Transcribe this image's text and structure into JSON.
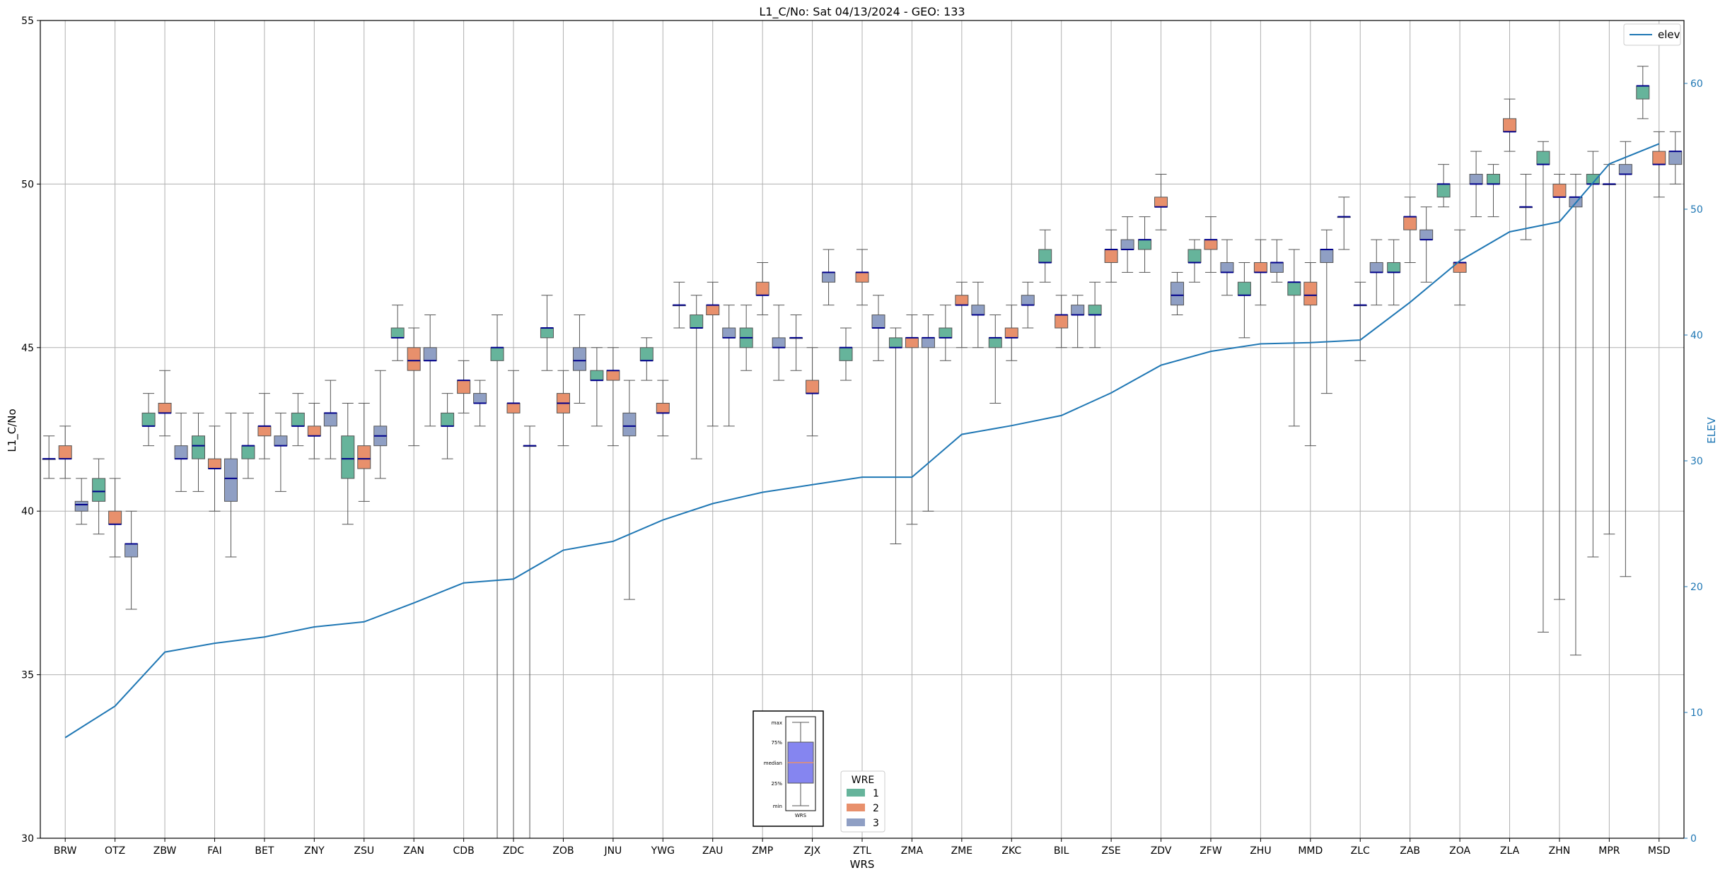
{
  "chart_data": {
    "type": "box",
    "title": "L1_C/No: Sat 04/13/2024 - GEO: 133",
    "xlabel": "WRS",
    "ylabel": "L1_C/No",
    "y2label": "ELEV",
    "ylim": [
      30,
      55
    ],
    "y2lim": [
      0,
      65
    ],
    "yticks": [
      30,
      35,
      40,
      45,
      50,
      55
    ],
    "y2ticks": [
      0,
      10,
      20,
      30,
      40,
      50,
      60
    ],
    "grid": true,
    "categories": [
      "BRW",
      "OTZ",
      "ZBW",
      "FAI",
      "BET",
      "ZNY",
      "ZSU",
      "ZAN",
      "CDB",
      "ZDC",
      "ZOB",
      "JNU",
      "YWG",
      "ZAU",
      "ZMP",
      "ZJX",
      "ZTL",
      "ZMA",
      "ZME",
      "ZKC",
      "BIL",
      "ZSE",
      "ZDV",
      "ZFW",
      "ZHU",
      "MMD",
      "ZLC",
      "ZAB",
      "ZOA",
      "ZLA",
      "ZHN",
      "MPR",
      "MSD"
    ],
    "wre_colors": {
      "1": "#66b49b",
      "2": "#e8906c",
      "3": "#8f9fc4"
    },
    "median_color": "#00008b",
    "elev_color": "#1f77b4",
    "legend_elev": {
      "label": "elev",
      "placement": "top-right"
    },
    "legend_wre": {
      "title": "WRE",
      "labels": [
        "1",
        "2",
        "3"
      ],
      "placement": "lower-center"
    },
    "key_box": {
      "labels": [
        "max",
        "75%",
        "median",
        "25%",
        "min"
      ],
      "xlabel": "WRS"
    },
    "elev": [
      8,
      10.5,
      14.8,
      15.5,
      16,
      16.8,
      17.2,
      18.7,
      20.3,
      20.6,
      22.9,
      23.6,
      25.3,
      26.6,
      27.5,
      28.1,
      28.7,
      28.7,
      32.1,
      32.8,
      33.6,
      35.4,
      37.6,
      38.7,
      39.3,
      39.4,
      39.6,
      42.6,
      45.9,
      48.2,
      49,
      53.6,
      55.2
    ],
    "boxes": [
      {
        "wrs": "BRW",
        "wre": "1",
        "min": 41,
        "q1": 41.6,
        "median": 41.6,
        "q3": 41.6,
        "max": 42.3
      },
      {
        "wrs": "BRW",
        "wre": "2",
        "min": 41,
        "q1": 41.6,
        "median": 41.6,
        "q3": 42,
        "max": 42.6
      },
      {
        "wrs": "BRW",
        "wre": "3",
        "min": 39.6,
        "q1": 40,
        "median": 40.2,
        "q3": 40.3,
        "max": 41
      },
      {
        "wrs": "OTZ",
        "wre": "1",
        "min": 39.3,
        "q1": 40.3,
        "median": 40.6,
        "q3": 41,
        "max": 41.6
      },
      {
        "wrs": "OTZ",
        "wre": "2",
        "min": 38.6,
        "q1": 39.6,
        "median": 39.6,
        "q3": 40,
        "max": 41
      },
      {
        "wrs": "OTZ",
        "wre": "3",
        "min": 37,
        "q1": 38.6,
        "median": 39,
        "q3": 39,
        "max": 40
      },
      {
        "wrs": "ZBW",
        "wre": "1",
        "min": 42,
        "q1": 42.6,
        "median": 42.6,
        "q3": 43,
        "max": 43.6
      },
      {
        "wrs": "ZBW",
        "wre": "2",
        "min": 42.3,
        "q1": 43,
        "median": 43,
        "q3": 43.3,
        "max": 44.3
      },
      {
        "wrs": "ZBW",
        "wre": "3",
        "min": 40.6,
        "q1": 41.6,
        "median": 41.6,
        "q3": 42,
        "max": 43
      },
      {
        "wrs": "FAI",
        "wre": "1",
        "min": 40.6,
        "q1": 41.6,
        "median": 42,
        "q3": 42.3,
        "max": 43
      },
      {
        "wrs": "FAI",
        "wre": "2",
        "min": 40,
        "q1": 41.3,
        "median": 41.3,
        "q3": 41.6,
        "max": 42.6
      },
      {
        "wrs": "FAI",
        "wre": "3",
        "min": 38.6,
        "q1": 40.3,
        "median": 41,
        "q3": 41.6,
        "max": 43
      },
      {
        "wrs": "BET",
        "wre": "1",
        "min": 41,
        "q1": 41.6,
        "median": 42,
        "q3": 42,
        "max": 43
      },
      {
        "wrs": "BET",
        "wre": "2",
        "min": 41.6,
        "q1": 42.3,
        "median": 42.6,
        "q3": 42.6,
        "max": 43.6
      },
      {
        "wrs": "BET",
        "wre": "3",
        "min": 40.6,
        "q1": 42,
        "median": 42,
        "q3": 42.3,
        "max": 43
      },
      {
        "wrs": "ZNY",
        "wre": "1",
        "min": 42,
        "q1": 42.6,
        "median": 42.6,
        "q3": 43,
        "max": 43.6
      },
      {
        "wrs": "ZNY",
        "wre": "2",
        "min": 41.6,
        "q1": 42.3,
        "median": 42.3,
        "q3": 42.6,
        "max": 43.3
      },
      {
        "wrs": "ZNY",
        "wre": "3",
        "min": 41.6,
        "q1": 42.6,
        "median": 43,
        "q3": 43,
        "max": 44
      },
      {
        "wrs": "ZSU",
        "wre": "1",
        "min": 39.6,
        "q1": 41,
        "median": 41.6,
        "q3": 42.3,
        "max": 43.3
      },
      {
        "wrs": "ZSU",
        "wre": "2",
        "min": 40.3,
        "q1": 41.3,
        "median": 41.6,
        "q3": 42,
        "max": 43.3
      },
      {
        "wrs": "ZSU",
        "wre": "3",
        "min": 41,
        "q1": 42,
        "median": 42.3,
        "q3": 42.6,
        "max": 44.3
      },
      {
        "wrs": "ZAN",
        "wre": "1",
        "min": 44.6,
        "q1": 45.3,
        "median": 45.3,
        "q3": 45.6,
        "max": 46.3
      },
      {
        "wrs": "ZAN",
        "wre": "2",
        "min": 42,
        "q1": 44.3,
        "median": 44.6,
        "q3": 45,
        "max": 45.6
      },
      {
        "wrs": "ZAN",
        "wre": "3",
        "min": 42.6,
        "q1": 44.6,
        "median": 44.6,
        "q3": 45,
        "max": 46
      },
      {
        "wrs": "CDB",
        "wre": "1",
        "min": 41.6,
        "q1": 42.6,
        "median": 42.6,
        "q3": 43,
        "max": 43.6
      },
      {
        "wrs": "CDB",
        "wre": "2",
        "min": 43,
        "q1": 43.6,
        "median": 44,
        "q3": 44,
        "max": 44.6
      },
      {
        "wrs": "CDB",
        "wre": "3",
        "min": 42.6,
        "q1": 43.3,
        "median": 43.3,
        "q3": 43.6,
        "max": 44
      },
      {
        "wrs": "ZDC",
        "wre": "1",
        "min": 30,
        "q1": 44.6,
        "median": 45,
        "q3": 45,
        "max": 46
      },
      {
        "wrs": "ZDC",
        "wre": "2",
        "min": 30,
        "q1": 43,
        "median": 43.3,
        "q3": 43.3,
        "max": 44.3
      },
      {
        "wrs": "ZDC",
        "wre": "3",
        "min": 30,
        "q1": 42,
        "median": 42,
        "q3": 42,
        "max": 42.6
      },
      {
        "wrs": "ZOB",
        "wre": "1",
        "min": 44.3,
        "q1": 45.3,
        "median": 45.6,
        "q3": 45.6,
        "max": 46.6
      },
      {
        "wrs": "ZOB",
        "wre": "2",
        "min": 42,
        "q1": 43,
        "median": 43.3,
        "q3": 43.6,
        "max": 44.3
      },
      {
        "wrs": "ZOB",
        "wre": "3",
        "min": 43.3,
        "q1": 44.3,
        "median": 44.6,
        "q3": 45,
        "max": 46
      },
      {
        "wrs": "JNU",
        "wre": "1",
        "min": 42.6,
        "q1": 44,
        "median": 44,
        "q3": 44.3,
        "max": 45
      },
      {
        "wrs": "JNU",
        "wre": "2",
        "min": 42,
        "q1": 44,
        "median": 44.3,
        "q3": 44.3,
        "max": 45
      },
      {
        "wrs": "JNU",
        "wre": "3",
        "min": 37.3,
        "q1": 42.3,
        "median": 42.6,
        "q3": 43,
        "max": 44
      },
      {
        "wrs": "YWG",
        "wre": "1",
        "min": 44,
        "q1": 44.6,
        "median": 44.6,
        "q3": 45,
        "max": 45.3
      },
      {
        "wrs": "YWG",
        "wre": "2",
        "min": 42.3,
        "q1": 43,
        "median": 43,
        "q3": 43.3,
        "max": 44
      },
      {
        "wrs": "YWG",
        "wre": "3",
        "min": 45.6,
        "q1": 46.3,
        "median": 46.3,
        "q3": 46.3,
        "max": 47
      },
      {
        "wrs": "ZAU",
        "wre": "1",
        "min": 41.6,
        "q1": 45.6,
        "median": 45.6,
        "q3": 46,
        "max": 46.6
      },
      {
        "wrs": "ZAU",
        "wre": "2",
        "min": 42.6,
        "q1": 46,
        "median": 46.3,
        "q3": 46.3,
        "max": 47
      },
      {
        "wrs": "ZAU",
        "wre": "3",
        "min": 42.6,
        "q1": 45.3,
        "median": 45.3,
        "q3": 45.6,
        "max": 46.3
      },
      {
        "wrs": "ZMP",
        "wre": "1",
        "min": 44.3,
        "q1": 45,
        "median": 45.3,
        "q3": 45.6,
        "max": 46.3
      },
      {
        "wrs": "ZMP",
        "wre": "2",
        "min": 46,
        "q1": 46.6,
        "median": 46.6,
        "q3": 47,
        "max": 47.6
      },
      {
        "wrs": "ZMP",
        "wre": "3",
        "min": 44,
        "q1": 45,
        "median": 45,
        "q3": 45.3,
        "max": 46.3
      },
      {
        "wrs": "ZJX",
        "wre": "1",
        "min": 44.3,
        "q1": 45.3,
        "median": 45.3,
        "q3": 45.3,
        "max": 46
      },
      {
        "wrs": "ZJX",
        "wre": "2",
        "min": 42.3,
        "q1": 43.6,
        "median": 43.6,
        "q3": 44,
        "max": 45
      },
      {
        "wrs": "ZJX",
        "wre": "3",
        "min": 46.3,
        "q1": 47,
        "median": 47.3,
        "q3": 47.3,
        "max": 48
      },
      {
        "wrs": "ZTL",
        "wre": "1",
        "min": 44,
        "q1": 44.6,
        "median": 45,
        "q3": 45,
        "max": 45.6
      },
      {
        "wrs": "ZTL",
        "wre": "2",
        "min": 46.3,
        "q1": 47,
        "median": 47.3,
        "q3": 47.3,
        "max": 48
      },
      {
        "wrs": "ZTL",
        "wre": "3",
        "min": 44.6,
        "q1": 45.6,
        "median": 45.6,
        "q3": 46,
        "max": 46.6
      },
      {
        "wrs": "ZMA",
        "wre": "1",
        "min": 39,
        "q1": 45,
        "median": 45,
        "q3": 45.3,
        "max": 45.6
      },
      {
        "wrs": "ZMA",
        "wre": "2",
        "min": 39.6,
        "q1": 45,
        "median": 45.3,
        "q3": 45.3,
        "max": 46
      },
      {
        "wrs": "ZMA",
        "wre": "3",
        "min": 40,
        "q1": 45,
        "median": 45.3,
        "q3": 45.3,
        "max": 46
      },
      {
        "wrs": "ZME",
        "wre": "1",
        "min": 44.6,
        "q1": 45.3,
        "median": 45.3,
        "q3": 45.6,
        "max": 46.3
      },
      {
        "wrs": "ZME",
        "wre": "2",
        "min": 45,
        "q1": 46.3,
        "median": 46.3,
        "q3": 46.6,
        "max": 47
      },
      {
        "wrs": "ZME",
        "wre": "3",
        "min": 45,
        "q1": 46,
        "median": 46,
        "q3": 46.3,
        "max": 47
      },
      {
        "wrs": "ZKC",
        "wre": "1",
        "min": 43.3,
        "q1": 45,
        "median": 45.3,
        "q3": 45.3,
        "max": 46
      },
      {
        "wrs": "ZKC",
        "wre": "2",
        "min": 44.6,
        "q1": 45.3,
        "median": 45.3,
        "q3": 45.6,
        "max": 46.3
      },
      {
        "wrs": "ZKC",
        "wre": "3",
        "min": 45.6,
        "q1": 46.3,
        "median": 46.3,
        "q3": 46.6,
        "max": 47
      },
      {
        "wrs": "BIL",
        "wre": "1",
        "min": 47,
        "q1": 47.6,
        "median": 47.6,
        "q3": 48,
        "max": 48.6
      },
      {
        "wrs": "BIL",
        "wre": "2",
        "min": 45,
        "q1": 45.6,
        "median": 46,
        "q3": 46,
        "max": 46.6
      },
      {
        "wrs": "BIL",
        "wre": "3",
        "min": 45,
        "q1": 46,
        "median": 46,
        "q3": 46.3,
        "max": 46.6
      },
      {
        "wrs": "ZSE",
        "wre": "1",
        "min": 45,
        "q1": 46,
        "median": 46,
        "q3": 46.3,
        "max": 47
      },
      {
        "wrs": "ZSE",
        "wre": "2",
        "min": 47,
        "q1": 47.6,
        "median": 48,
        "q3": 48,
        "max": 48.6
      },
      {
        "wrs": "ZSE",
        "wre": "3",
        "min": 47.3,
        "q1": 48,
        "median": 48,
        "q3": 48.3,
        "max": 49
      },
      {
        "wrs": "ZDV",
        "wre": "1",
        "min": 47.3,
        "q1": 48,
        "median": 48.3,
        "q3": 48.3,
        "max": 49
      },
      {
        "wrs": "ZDV",
        "wre": "2",
        "min": 48.6,
        "q1": 49.3,
        "median": 49.3,
        "q3": 49.6,
        "max": 50.3
      },
      {
        "wrs": "ZDV",
        "wre": "3",
        "min": 46,
        "q1": 46.3,
        "median": 46.6,
        "q3": 47,
        "max": 47.3
      },
      {
        "wrs": "ZFW",
        "wre": "1",
        "min": 47,
        "q1": 47.6,
        "median": 47.6,
        "q3": 48,
        "max": 48.3
      },
      {
        "wrs": "ZFW",
        "wre": "2",
        "min": 47.3,
        "q1": 48,
        "median": 48.3,
        "q3": 48.3,
        "max": 49
      },
      {
        "wrs": "ZFW",
        "wre": "3",
        "min": 46.6,
        "q1": 47.3,
        "median": 47.3,
        "q3": 47.6,
        "max": 48.3
      },
      {
        "wrs": "ZHU",
        "wre": "1",
        "min": 45.3,
        "q1": 46.6,
        "median": 46.6,
        "q3": 47,
        "max": 47.6
      },
      {
        "wrs": "ZHU",
        "wre": "2",
        "min": 46.3,
        "q1": 47.3,
        "median": 47.3,
        "q3": 47.6,
        "max": 48.3
      },
      {
        "wrs": "ZHU",
        "wre": "3",
        "min": 47,
        "q1": 47.3,
        "median": 47.6,
        "q3": 47.6,
        "max": 48.3
      },
      {
        "wrs": "MMD",
        "wre": "1",
        "min": 42.6,
        "q1": 46.6,
        "median": 47,
        "q3": 47,
        "max": 48
      },
      {
        "wrs": "MMD",
        "wre": "2",
        "min": 42,
        "q1": 46.3,
        "median": 46.6,
        "q3": 47,
        "max": 47.6
      },
      {
        "wrs": "MMD",
        "wre": "3",
        "min": 43.6,
        "q1": 47.6,
        "median": 48,
        "q3": 48,
        "max": 48.6
      },
      {
        "wrs": "ZLC",
        "wre": "1",
        "min": 48,
        "q1": 49,
        "median": 49,
        "q3": 49,
        "max": 49.6
      },
      {
        "wrs": "ZLC",
        "wre": "2",
        "min": 44.6,
        "q1": 46.3,
        "median": 46.3,
        "q3": 46.3,
        "max": 47
      },
      {
        "wrs": "ZLC",
        "wre": "3",
        "min": 46.3,
        "q1": 47.3,
        "median": 47.3,
        "q3": 47.6,
        "max": 48.3
      },
      {
        "wrs": "ZAB",
        "wre": "1",
        "min": 46.3,
        "q1": 47.3,
        "median": 47.3,
        "q3": 47.6,
        "max": 48.3
      },
      {
        "wrs": "ZAB",
        "wre": "2",
        "min": 47.6,
        "q1": 48.6,
        "median": 49,
        "q3": 49,
        "max": 49.6
      },
      {
        "wrs": "ZAB",
        "wre": "3",
        "min": 47,
        "q1": 48.3,
        "median": 48.3,
        "q3": 48.6,
        "max": 49.3
      },
      {
        "wrs": "ZOA",
        "wre": "1",
        "min": 49.3,
        "q1": 49.6,
        "median": 50,
        "q3": 50,
        "max": 50.6
      },
      {
        "wrs": "ZOA",
        "wre": "2",
        "min": 46.3,
        "q1": 47.3,
        "median": 47.6,
        "q3": 47.6,
        "max": 48.6
      },
      {
        "wrs": "ZOA",
        "wre": "3",
        "min": 49,
        "q1": 50,
        "median": 50,
        "q3": 50.3,
        "max": 51
      },
      {
        "wrs": "ZLA",
        "wre": "1",
        "min": 49,
        "q1": 50,
        "median": 50,
        "q3": 50.3,
        "max": 50.6
      },
      {
        "wrs": "ZLA",
        "wre": "2",
        "min": 51,
        "q1": 51.6,
        "median": 51.6,
        "q3": 52,
        "max": 52.6
      },
      {
        "wrs": "ZLA",
        "wre": "3",
        "min": 48.3,
        "q1": 49.3,
        "median": 49.3,
        "q3": 49.3,
        "max": 50.3
      },
      {
        "wrs": "ZHN",
        "wre": "1",
        "min": 36.3,
        "q1": 50.6,
        "median": 50.6,
        "q3": 51,
        "max": 51.3
      },
      {
        "wrs": "ZHN",
        "wre": "2",
        "min": 37.3,
        "q1": 49.6,
        "median": 49.6,
        "q3": 50,
        "max": 50.3
      },
      {
        "wrs": "ZHN",
        "wre": "3",
        "min": 35.6,
        "q1": 49.3,
        "median": 49.6,
        "q3": 49.6,
        "max": 50.3
      },
      {
        "wrs": "MPR",
        "wre": "1",
        "min": 38.6,
        "q1": 50,
        "median": 50,
        "q3": 50.3,
        "max": 51
      },
      {
        "wrs": "MPR",
        "wre": "2",
        "min": 39.3,
        "q1": 50,
        "median": 50,
        "q3": 50,
        "max": 50.6
      },
      {
        "wrs": "MPR",
        "wre": "3",
        "min": 38,
        "q1": 50.3,
        "median": 50.3,
        "q3": 50.6,
        "max": 51.3
      },
      {
        "wrs": "MSD",
        "wre": "1",
        "min": 52,
        "q1": 52.6,
        "median": 53,
        "q3": 53,
        "max": 53.6
      },
      {
        "wrs": "MSD",
        "wre": "2",
        "min": 49.6,
        "q1": 50.6,
        "median": 50.6,
        "q3": 51,
        "max": 51.6
      },
      {
        "wrs": "MSD",
        "wre": "3",
        "min": 50,
        "q1": 50.6,
        "median": 51,
        "q3": 51,
        "max": 51.6
      }
    ]
  }
}
